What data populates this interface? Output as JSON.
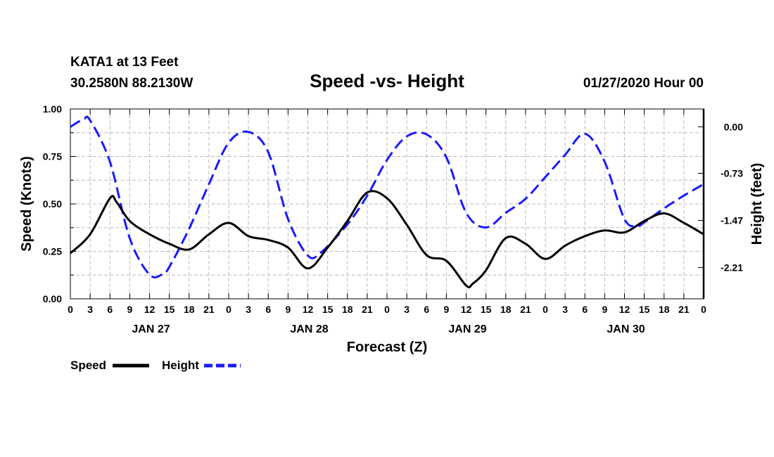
{
  "header": {
    "station": "KATA1 at 13 Feet",
    "coords": "30.2580N 88.2130W",
    "title": "Speed -vs- Height",
    "datetime": "01/27/2020 Hour 00"
  },
  "chart_data": {
    "type": "line",
    "title": "Speed -vs- Height",
    "xlabel": "Forecast (Z)",
    "ylabel_left": "Speed (Knots)",
    "ylabel_right": "Height (feet)",
    "x_unit": "hours from 01/27 00Z",
    "xlim": [
      0,
      96
    ],
    "x_tick_step": 3,
    "x_tick_labels": [
      "0",
      "3",
      "6",
      "9",
      "12",
      "15",
      "18",
      "21",
      "0",
      "3",
      "6",
      "9",
      "12",
      "15",
      "18",
      "21",
      "0",
      "3",
      "6",
      "9",
      "12",
      "15",
      "18",
      "21",
      "0",
      "3",
      "6",
      "9",
      "12",
      "15",
      "18",
      "21",
      "0"
    ],
    "day_labels": [
      {
        "label": "JAN 27",
        "hour": 12
      },
      {
        "label": "JAN 28",
        "hour": 36
      },
      {
        "label": "JAN 29",
        "hour": 60
      },
      {
        "label": "JAN 30",
        "hour": 84
      }
    ],
    "left_axis": {
      "ylim": [
        0,
        1
      ],
      "ticks": [
        "0.00",
        "0.25",
        "0.50",
        "0.75",
        "1.00"
      ]
    },
    "right_axis": {
      "ylim": [
        -2.7,
        0.28
      ],
      "ticks": [
        "0.00",
        "-0.73",
        "-1.47",
        "-2.21"
      ]
    },
    "series": [
      {
        "name": "Speed",
        "axis": "left",
        "color": "#000000",
        "dash": "solid",
        "x": [
          0,
          3,
          6,
          7,
          9,
          12,
          15,
          18,
          21,
          24,
          27,
          30,
          33,
          36,
          39,
          42,
          45,
          48,
          51,
          54,
          57,
          60,
          61,
          63,
          66,
          69,
          72,
          75,
          78,
          81,
          84,
          87,
          90,
          93,
          96
        ],
        "values": [
          0.24,
          0.34,
          0.53,
          0.51,
          0.41,
          0.34,
          0.29,
          0.26,
          0.34,
          0.4,
          0.33,
          0.31,
          0.27,
          0.16,
          0.27,
          0.41,
          0.56,
          0.53,
          0.39,
          0.23,
          0.2,
          0.07,
          0.08,
          0.15,
          0.32,
          0.29,
          0.21,
          0.28,
          0.33,
          0.36,
          0.35,
          0.41,
          0.45,
          0.4,
          0.34
        ]
      },
      {
        "name": "Height",
        "axis": "right",
        "color": "#1a1aff",
        "dash": "dashed",
        "x": [
          0,
          2,
          3,
          6,
          9,
          12,
          14,
          15,
          18,
          21,
          24,
          27,
          30,
          33,
          36,
          38,
          42,
          45,
          48,
          51,
          54,
          57,
          60,
          63,
          66,
          69,
          72,
          75,
          78,
          81,
          84,
          86,
          87,
          90,
          93,
          96
        ],
        "values": [
          0.0,
          0.12,
          0.1,
          -0.55,
          -1.75,
          -2.32,
          -2.31,
          -2.2,
          -1.6,
          -0.9,
          -0.25,
          -0.08,
          -0.4,
          -1.45,
          -2.02,
          -1.97,
          -1.53,
          -1.08,
          -0.52,
          -0.15,
          -0.12,
          -0.48,
          -1.35,
          -1.58,
          -1.35,
          -1.13,
          -0.79,
          -0.44,
          -0.11,
          -0.55,
          -1.45,
          -1.55,
          -1.5,
          -1.28,
          -1.08,
          -0.9
        ]
      }
    ]
  },
  "legend": {
    "speed": "Speed",
    "height": "Height"
  }
}
